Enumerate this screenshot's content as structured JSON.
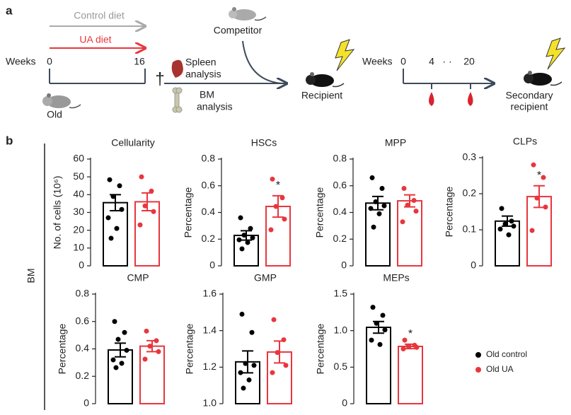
{
  "panel_labels": {
    "a": "a",
    "b": "b"
  },
  "schematic": {
    "control_diet": "Control diet",
    "ua_diet": "UA diet",
    "weeks_1": "Weeks",
    "week_0": "0",
    "week_16": "16",
    "old": "Old",
    "dagger": "†",
    "spleen": [
      "Spleen",
      "analysis"
    ],
    "bm": [
      "BM",
      "analysis"
    ],
    "competitor": "Competitor",
    "recipient": "Recipient",
    "weeks_2": "Weeks",
    "t_0": "0",
    "t_4": "4",
    "t_dots": "· ·",
    "t_20": "20",
    "secondary": [
      "Secondary",
      "recipient"
    ]
  },
  "side_label": "BM",
  "chart_data": [
    {
      "type": "bar",
      "title": "Cellularity",
      "ylabel": "No. of cells (10⁶)",
      "ylim": [
        0,
        60
      ],
      "yticks": [
        0,
        10,
        20,
        30,
        40,
        50,
        60
      ],
      "series": [
        {
          "name": "Old control",
          "color": "#000000",
          "values": [
            35.5
          ],
          "errors": [
            4.5
          ],
          "points": [
            48.4,
            45,
            39,
            31.7,
            27,
            21,
            15.5
          ]
        },
        {
          "name": "Old UA",
          "color": "#e8363d",
          "values": [
            36
          ],
          "errors": [
            5
          ],
          "points": [
            50,
            42,
            33.7,
            30.5,
            23
          ]
        }
      ]
    },
    {
      "type": "bar",
      "title": "HSCs",
      "ylabel": "Percentage",
      "ylim": [
        0,
        0.8
      ],
      "yticks": [
        0,
        0.2,
        0.4,
        0.6,
        0.8
      ],
      "annotation": "*",
      "series": [
        {
          "name": "Old control",
          "color": "#000000",
          "values": [
            0.228
          ],
          "errors": [
            0.035
          ],
          "points": [
            0.36,
            0.28,
            0.23,
            0.21,
            0.195,
            0.175,
            0.127
          ]
        },
        {
          "name": "Old UA",
          "color": "#e8363d",
          "values": [
            0.445
          ],
          "errors": [
            0.08
          ],
          "points": [
            0.65,
            0.51,
            0.445,
            0.35,
            0.27
          ]
        }
      ]
    },
    {
      "type": "bar",
      "title": "MPP",
      "ylabel": "Percentage",
      "ylim": [
        0,
        0.8
      ],
      "yticks": [
        0,
        0.2,
        0.4,
        0.6,
        0.8
      ],
      "series": [
        {
          "name": "Old control",
          "color": "#000000",
          "values": [
            0.47
          ],
          "errors": [
            0.05
          ],
          "points": [
            0.66,
            0.58,
            0.48,
            0.45,
            0.43,
            0.39,
            0.29
          ]
        },
        {
          "name": "Old UA",
          "color": "#e8363d",
          "values": [
            0.487
          ],
          "errors": [
            0.045
          ],
          "points": [
            0.58,
            0.49,
            0.455,
            0.41,
            0.33
          ]
        }
      ]
    },
    {
      "type": "bar",
      "title": "CLPs",
      "ylabel": "Percentage",
      "ylim": [
        0,
        0.3
      ],
      "yticks": [
        0,
        0.1,
        0.2,
        0.3
      ],
      "annotation": "*",
      "series": [
        {
          "name": "Old control",
          "color": "#000000",
          "values": [
            0.124
          ],
          "errors": [
            0.014
          ],
          "points": [
            0.159,
            0.124,
            0.116,
            0.11,
            0.102,
            0.086
          ]
        },
        {
          "name": "Old UA",
          "color": "#e8363d",
          "values": [
            0.192
          ],
          "errors": [
            0.03
          ],
          "points": [
            0.28,
            0.245,
            0.188,
            0.163,
            0.098
          ]
        }
      ]
    },
    {
      "type": "bar",
      "title": "CMP",
      "ylabel": "Percentage",
      "ylim": [
        0,
        0.8
      ],
      "yticks": [
        0,
        0.2,
        0.4,
        0.6,
        0.8
      ],
      "series": [
        {
          "name": "Old control",
          "color": "#000000",
          "values": [
            0.392
          ],
          "errors": [
            0.05
          ],
          "points": [
            0.6,
            0.52,
            0.47,
            0.39,
            0.32,
            0.295,
            0.263
          ]
        },
        {
          "name": "Old UA",
          "color": "#e8363d",
          "values": [
            0.42
          ],
          "errors": [
            0.04
          ],
          "points": [
            0.53,
            0.46,
            0.42,
            0.38,
            0.325
          ]
        }
      ]
    },
    {
      "type": "bar",
      "title": "GMP",
      "ylabel": "Percentage",
      "ylim": [
        1.0,
        1.6
      ],
      "yticks": [
        {
          "value": 1.0,
          "label": "1.0"
        },
        1.2,
        1.4,
        1.6
      ],
      "series": [
        {
          "name": "Old control",
          "color": "#000000",
          "values": [
            1.229
          ],
          "errors": [
            0.06
          ],
          "points": [
            1.49,
            1.39,
            1.22,
            1.21,
            1.17,
            1.13,
            1.085
          ]
        },
        {
          "name": "Old UA",
          "color": "#e8363d",
          "values": [
            1.283
          ],
          "errors": [
            0.06
          ],
          "points": [
            1.46,
            1.35,
            1.28,
            1.21,
            1.17
          ]
        }
      ]
    },
    {
      "type": "bar",
      "title": "MEPs",
      "ylabel": "Percentage",
      "ylim": [
        0,
        1.5
      ],
      "annotation": "*",
      "yticks": [
        0,
        0.5,
        {
          "value": 1.0,
          "label": "1.0"
        },
        1.5
      ],
      "series": [
        {
          "name": "Old control",
          "color": "#000000",
          "values": [
            1.045
          ],
          "errors": [
            0.08
          ],
          "points": [
            1.32,
            1.21,
            1.1,
            1.01,
            0.87,
            0.81
          ]
        },
        {
          "name": "Old UA",
          "color": "#e8363d",
          "values": [
            0.784
          ],
          "errors": [
            0.03
          ],
          "points": [
            0.87,
            0.8,
            0.79,
            0.77,
            0.75
          ]
        }
      ]
    }
  ]
}
